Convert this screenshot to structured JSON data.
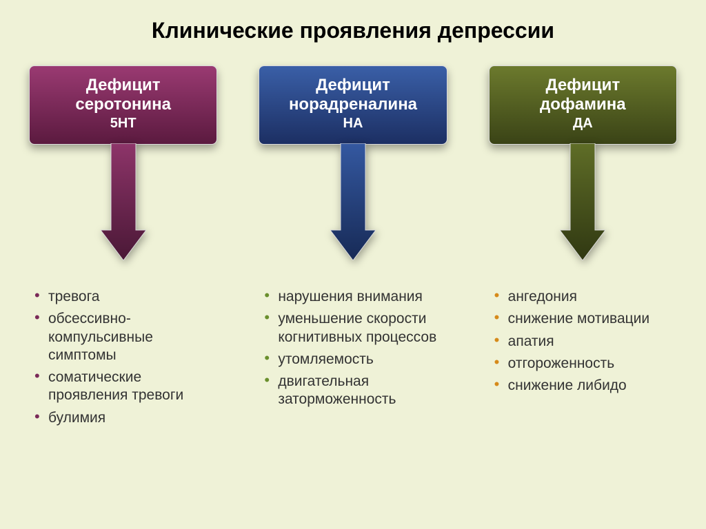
{
  "background_color": "#eff2d7",
  "title": {
    "text": "Клинические проявления депрессии",
    "color": "#000000",
    "fontsize": 32
  },
  "layout": {
    "column_gap": 60,
    "card_radius": 8,
    "card_shadow": "0 6px 12px rgba(0,0,0,0.35)"
  },
  "arrow": {
    "height": 170,
    "shaft_width": 36,
    "head_width": 66,
    "head_height": 44
  },
  "card_text": {
    "color": "#ffffff",
    "line_fontsize": 24,
    "sub_fontsize": 20
  },
  "bullet_text": {
    "color": "#333333",
    "fontsize": 21
  },
  "columns": [
    {
      "id": "serotonin",
      "card_lines": [
        "Дефицит",
        "серотонина",
        "5НТ"
      ],
      "gradient_top": "#9a3a72",
      "gradient_bottom": "#5b1a3f",
      "border_color": "#dcdcdc",
      "arrow_top": "#8d3469",
      "arrow_bottom": "#4a1836",
      "bullet_color": "#7a2a58",
      "items": [
        "тревога",
        "обсессивно-компульсивные симптомы",
        "соматические проявления тревоги",
        "булимия"
      ]
    },
    {
      "id": "noradrenaline",
      "card_lines": [
        "Дефицит",
        "норадреналина",
        "НА"
      ],
      "gradient_top": "#3a5fa7",
      "gradient_bottom": "#1c2f63",
      "border_color": "#dcdcdc",
      "arrow_top": "#3458a0",
      "arrow_bottom": "#172a56",
      "bullet_color": "#6a8f2d",
      "items": [
        "нарушения внимания",
        "уменьшение скорости когнитивных процессов",
        "утомляемость",
        "двигательная заторможенность"
      ]
    },
    {
      "id": "dopamine",
      "card_lines": [
        "Дефицит",
        "дофамина",
        "ДА"
      ],
      "gradient_top": "#6c7a2d",
      "gradient_bottom": "#3a4316",
      "border_color": "#dcdcdc",
      "arrow_top": "#5f6d27",
      "arrow_bottom": "#303812",
      "bullet_color": "#d68a1a",
      "items": [
        "ангедония",
        "снижение мотивации",
        "апатия",
        "отгороженность",
        "снижение либидо"
      ]
    }
  ]
}
